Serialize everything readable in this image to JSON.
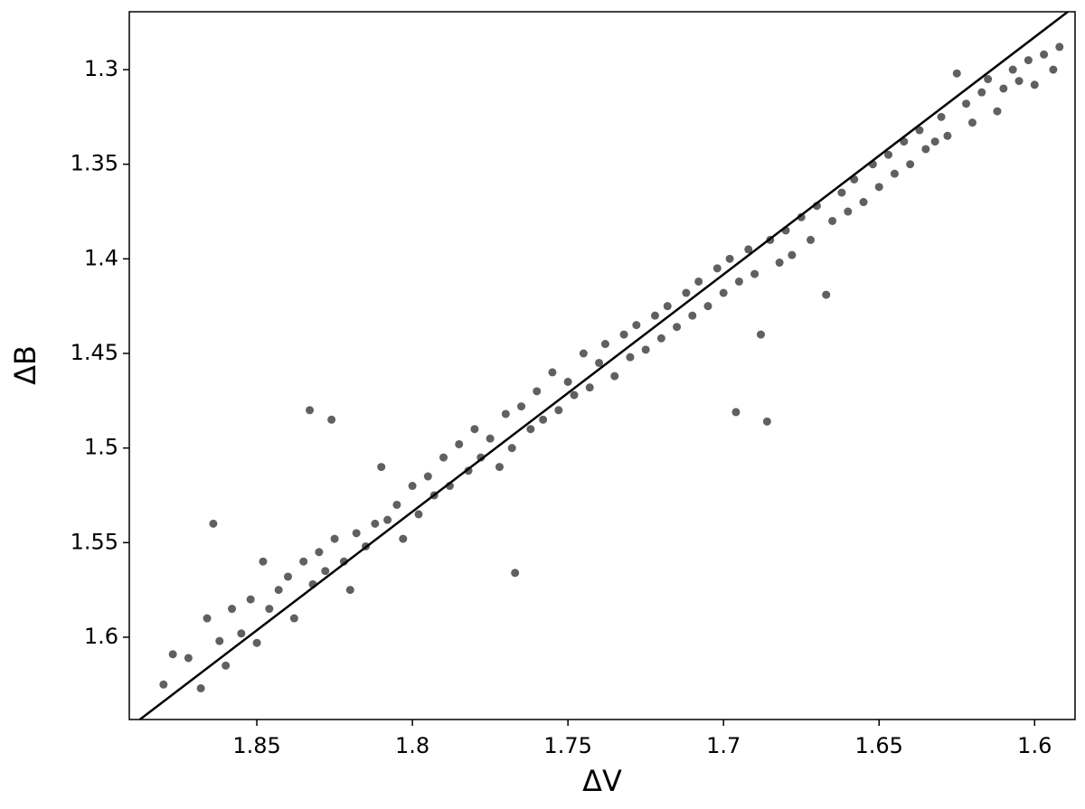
{
  "chart_data": {
    "type": "scatter",
    "x_label": "ΔV",
    "y_label": "ΔB",
    "xlim": [
      1.891,
      1.587
    ],
    "ylim": [
      1.6435,
      1.2694
    ],
    "xticks": [
      1.85,
      1.8,
      1.75,
      1.7,
      1.65,
      1.6
    ],
    "yticks": [
      1.3,
      1.35,
      1.4,
      1.45,
      1.5,
      1.55,
      1.6
    ],
    "color": "#606060",
    "fit_line": {
      "x": [
        1.888,
        1.589
      ],
      "y": [
        1.644,
        1.269
      ],
      "color": "#000000"
    },
    "x": [
      1.88,
      1.877,
      1.872,
      1.868,
      1.866,
      1.864,
      1.862,
      1.86,
      1.858,
      1.855,
      1.852,
      1.85,
      1.848,
      1.846,
      1.843,
      1.84,
      1.838,
      1.835,
      1.833,
      1.832,
      1.83,
      1.828,
      1.826,
      1.825,
      1.822,
      1.82,
      1.818,
      1.815,
      1.812,
      1.81,
      1.808,
      1.805,
      1.803,
      1.8,
      1.798,
      1.795,
      1.793,
      1.79,
      1.788,
      1.785,
      1.782,
      1.78,
      1.778,
      1.775,
      1.772,
      1.77,
      1.768,
      1.767,
      1.765,
      1.762,
      1.76,
      1.758,
      1.755,
      1.753,
      1.75,
      1.748,
      1.745,
      1.743,
      1.74,
      1.738,
      1.735,
      1.732,
      1.73,
      1.728,
      1.725,
      1.722,
      1.72,
      1.718,
      1.715,
      1.712,
      1.71,
      1.708,
      1.705,
      1.702,
      1.7,
      1.698,
      1.696,
      1.695,
      1.692,
      1.69,
      1.688,
      1.686,
      1.685,
      1.682,
      1.68,
      1.678,
      1.675,
      1.672,
      1.67,
      1.667,
      1.665,
      1.662,
      1.66,
      1.658,
      1.655,
      1.652,
      1.65,
      1.647,
      1.645,
      1.642,
      1.64,
      1.637,
      1.635,
      1.632,
      1.63,
      1.628,
      1.625,
      1.622,
      1.62,
      1.617,
      1.615,
      1.612,
      1.61,
      1.607,
      1.605,
      1.602,
      1.6,
      1.597,
      1.594,
      1.592
    ],
    "y": [
      1.625,
      1.609,
      1.611,
      1.627,
      1.59,
      1.54,
      1.602,
      1.615,
      1.585,
      1.598,
      1.58,
      1.603,
      1.56,
      1.585,
      1.575,
      1.568,
      1.59,
      1.56,
      1.48,
      1.572,
      1.555,
      1.565,
      1.485,
      1.548,
      1.56,
      1.575,
      1.545,
      1.552,
      1.54,
      1.51,
      1.538,
      1.53,
      1.548,
      1.52,
      1.535,
      1.515,
      1.525,
      1.505,
      1.52,
      1.498,
      1.512,
      1.49,
      1.505,
      1.495,
      1.51,
      1.482,
      1.5,
      1.566,
      1.478,
      1.49,
      1.47,
      1.485,
      1.46,
      1.48,
      1.465,
      1.472,
      1.45,
      1.468,
      1.455,
      1.445,
      1.462,
      1.44,
      1.452,
      1.435,
      1.448,
      1.43,
      1.442,
      1.425,
      1.436,
      1.418,
      1.43,
      1.412,
      1.425,
      1.405,
      1.418,
      1.4,
      1.481,
      1.412,
      1.395,
      1.408,
      1.44,
      1.486,
      1.39,
      1.402,
      1.385,
      1.398,
      1.378,
      1.39,
      1.372,
      1.419,
      1.38,
      1.365,
      1.375,
      1.358,
      1.37,
      1.35,
      1.362,
      1.345,
      1.355,
      1.338,
      1.35,
      1.332,
      1.342,
      1.338,
      1.325,
      1.335,
      1.302,
      1.318,
      1.328,
      1.312,
      1.305,
      1.322,
      1.31,
      1.3,
      1.306,
      1.295,
      1.308,
      1.292,
      1.3,
      1.288
    ]
  }
}
